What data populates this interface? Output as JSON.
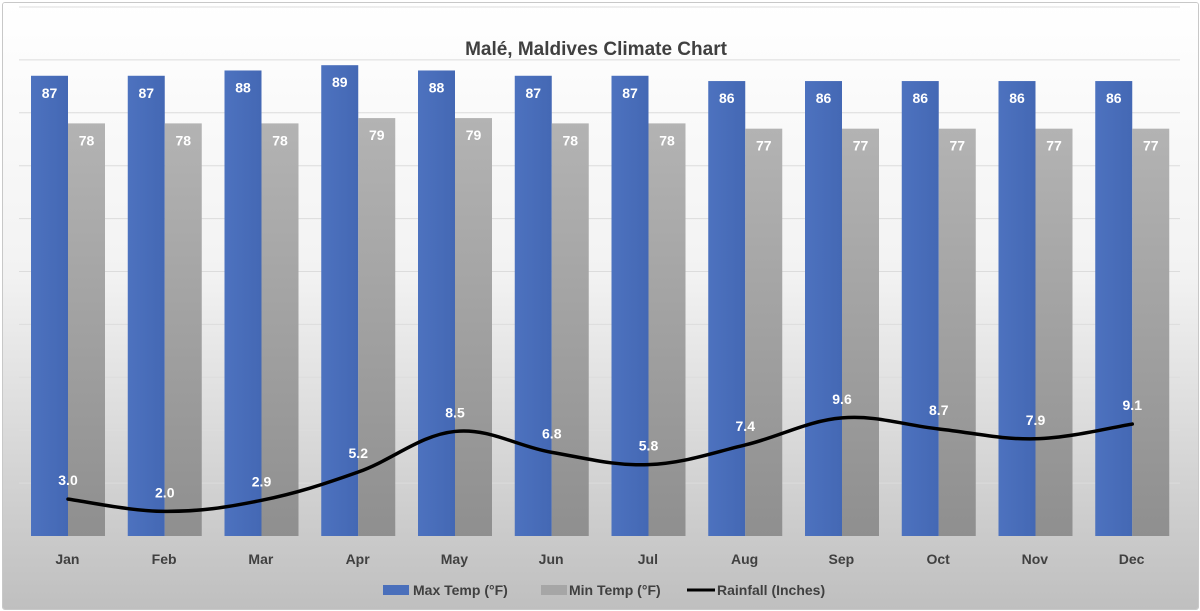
{
  "chart_data": {
    "type": "bar",
    "title": "Malé, Maldives Climate Chart",
    "categories": [
      "Jan",
      "Feb",
      "Mar",
      "Apr",
      "May",
      "Jun",
      "Jul",
      "Aug",
      "Sep",
      "Oct",
      "Nov",
      "Dec"
    ],
    "series": [
      {
        "name": "Max Temp (°F)",
        "type": "bar",
        "color": "#4a6fbb",
        "values": [
          87,
          87,
          88,
          89,
          88,
          87,
          87,
          86,
          86,
          86,
          86,
          86
        ]
      },
      {
        "name": "Min Temp (°F)",
        "type": "bar",
        "color": "#a6a6a6",
        "values": [
          78,
          78,
          78,
          79,
          79,
          78,
          78,
          77,
          77,
          77,
          77,
          77
        ]
      },
      {
        "name": "Rainfall (Inches)",
        "type": "line",
        "color": "#000000",
        "values": [
          "3.0",
          "2.0",
          "2.9",
          "5.2",
          "8.5",
          "6.8",
          "5.8",
          "7.4",
          "9.6",
          "8.7",
          "7.9",
          "9.1"
        ]
      }
    ],
    "temp_axis": {
      "ylim": [
        0,
        100
      ]
    },
    "rain_axis": {
      "ylim": [
        0,
        43
      ]
    },
    "grid": true,
    "legend_position": "bottom",
    "background": "gradient white to grey"
  }
}
